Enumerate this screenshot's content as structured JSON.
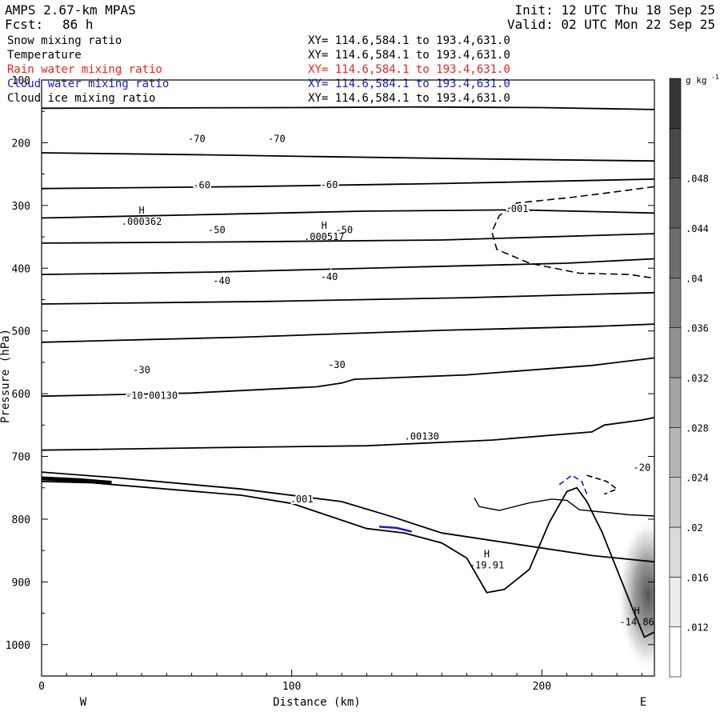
{
  "header": {
    "model": "AMPS 2.67-km MPAS",
    "init": "Init: 12 UTC Thu 18 Sep 25",
    "fcst_label": "Fcst:",
    "fcst_value": "86 h",
    "valid": "Valid: 02 UTC Mon 22 Sep 25"
  },
  "fields": [
    {
      "name": "Snow mixing ratio",
      "xy": "XY= 114.6,584.1 to 193.4,631.0",
      "color": "#000000"
    },
    {
      "name": "Temperature",
      "xy": "XY= 114.6,584.1 to 193.4,631.0",
      "color": "#000000"
    },
    {
      "name": "Rain water mixing ratio",
      "xy": "XY= 114.6,584.1 to 193.4,631.0",
      "color": "#e8261f"
    },
    {
      "name": "Cloud water mixing ratio",
      "xy": "XY= 114.6,584.1 to 193.4,631.0",
      "color": "#1a1acc"
    },
    {
      "name": "Cloud ice mixing ratio",
      "xy": "XY= 114.6,584.1 to 193.4,631.0",
      "color": "#000000"
    }
  ],
  "chart_data": {
    "type": "contour cross-section",
    "xlabel": "Distance (km)",
    "ylabel": "Pressure (hPa)",
    "xlim": [
      0,
      245
    ],
    "ylim": [
      1050,
      100
    ],
    "x_ticks": [
      0,
      100,
      200
    ],
    "y_ticks": [
      100,
      200,
      300,
      400,
      500,
      600,
      700,
      800,
      900,
      1000
    ],
    "left_end_label": "W",
    "right_end_label": "E",
    "colorbar": {
      "unit": "g kg",
      "unit_exp": "-1",
      "levels": [
        ".012",
        ".016",
        ".02",
        ".024",
        ".028",
        ".032",
        ".036",
        ".04",
        ".044",
        ".048"
      ]
    },
    "temperature_isotherms": [
      {
        "points": [
          [
            0,
            145
          ],
          [
            100,
            144
          ],
          [
            150,
            143
          ],
          [
            200,
            144
          ],
          [
            245,
            147
          ]
        ]
      },
      {
        "points": [
          [
            0,
            216
          ],
          [
            60,
            219
          ],
          [
            110,
            222
          ],
          [
            180,
            226
          ],
          [
            245,
            229
          ]
        ]
      },
      {
        "points": [
          [
            0,
            273
          ],
          [
            80,
            270
          ],
          [
            160,
            265
          ],
          [
            245,
            258
          ]
        ]
      },
      {
        "points": [
          [
            0,
            320
          ],
          [
            60,
            315
          ],
          [
            130,
            309
          ],
          [
            190,
            307
          ],
          [
            245,
            312
          ]
        ]
      },
      {
        "points": [
          [
            0,
            360
          ],
          [
            80,
            358
          ],
          [
            160,
            355
          ],
          [
            245,
            345
          ]
        ]
      },
      {
        "points": [
          [
            0,
            410
          ],
          [
            70,
            406
          ],
          [
            150,
            398
          ],
          [
            210,
            392
          ],
          [
            245,
            385
          ]
        ]
      },
      {
        "points": [
          [
            0,
            457
          ],
          [
            90,
            453
          ],
          [
            170,
            447
          ],
          [
            245,
            439
          ]
        ]
      },
      {
        "points": [
          [
            0,
            518
          ],
          [
            80,
            510
          ],
          [
            160,
            499
          ],
          [
            220,
            493
          ],
          [
            245,
            489
          ]
        ]
      },
      {
        "points": [
          [
            0,
            604
          ],
          [
            60,
            599
          ],
          [
            110,
            589
          ],
          [
            120,
            583
          ],
          [
            125,
            577
          ],
          [
            170,
            570
          ],
          [
            220,
            555
          ],
          [
            245,
            543
          ]
        ]
      },
      {
        "points": [
          [
            0,
            690
          ],
          [
            70,
            686
          ],
          [
            130,
            683
          ],
          [
            180,
            674
          ],
          [
            220,
            661
          ],
          [
            225,
            650
          ],
          [
            240,
            642
          ],
          [
            245,
            638
          ]
        ]
      },
      {
        "points": [
          [
            0,
            725
          ],
          [
            30,
            734
          ],
          [
            80,
            752
          ],
          [
            120,
            772
          ],
          [
            140,
            796
          ],
          [
            160,
            822
          ],
          [
            190,
            840
          ],
          [
            220,
            858
          ],
          [
            245,
            868
          ]
        ]
      }
    ],
    "temperature_labels": [
      {
        "text": "-70",
        "x": 62,
        "p": 194
      },
      {
        "text": "-70",
        "x": 94,
        "p": 194
      },
      {
        "text": "-60",
        "x": 64,
        "p": 268
      },
      {
        "text": "-60",
        "x": 115,
        "p": 267
      },
      {
        "text": "-50",
        "x": 70,
        "p": 339
      },
      {
        "text": "-50",
        "x": 121,
        "p": 339
      },
      {
        "text": "-40",
        "x": 72,
        "p": 420
      },
      {
        "text": "-40",
        "x": 115,
        "p": 414
      },
      {
        "text": "-30",
        "x": 40,
        "p": 562
      },
      {
        "text": "-30",
        "x": 118,
        "p": 554
      },
      {
        "text": "-20",
        "x": 240,
        "p": 718
      },
      {
        "text": "-10.00130",
        "x": 44,
        "p": 603
      },
      {
        "text": ".00130",
        "x": 152,
        "p": 668
      }
    ],
    "terrain_profile": [
      [
        0,
        740
      ],
      [
        20,
        742
      ],
      [
        50,
        752
      ],
      [
        80,
        762
      ],
      [
        100,
        775
      ],
      [
        115,
        795
      ],
      [
        130,
        815
      ],
      [
        145,
        822
      ],
      [
        160,
        838
      ],
      [
        170,
        862
      ],
      [
        178,
        917
      ],
      [
        185,
        912
      ],
      [
        195,
        880
      ],
      [
        203,
        805
      ],
      [
        210,
        756
      ],
      [
        214,
        750
      ],
      [
        218,
        772
      ],
      [
        224,
        820
      ],
      [
        230,
        880
      ],
      [
        236,
        940
      ],
      [
        241,
        988
      ],
      [
        245,
        980
      ]
    ],
    "snow_contour": [
      [
        173,
        766
      ],
      [
        175,
        780
      ],
      [
        183,
        786
      ],
      [
        195,
        774
      ],
      [
        204,
        768
      ],
      [
        210,
        770
      ],
      [
        215,
        785
      ],
      [
        235,
        793
      ],
      [
        245,
        795
      ]
    ],
    "cloud_ice_dashed": [
      [
        245,
        270
      ],
      [
        230,
        278
      ],
      [
        210,
        288
      ],
      [
        190,
        296
      ],
      [
        183,
        316
      ],
      [
        180,
        342
      ],
      [
        182,
        370
      ],
      [
        195,
        392
      ],
      [
        215,
        408
      ],
      [
        235,
        410
      ],
      [
        245,
        416
      ]
    ],
    "cloud_ice_dashed_2": [
      [
        218,
        730
      ],
      [
        226,
        740
      ],
      [
        230,
        752
      ],
      [
        225,
        760
      ]
    ],
    "cloud_water_dashed": [
      [
        207,
        745
      ],
      [
        212,
        730
      ],
      [
        216,
        740
      ],
      [
        218,
        760
      ]
    ],
    "rain_shading": {
      "x": 238,
      "p": 920,
      "max": 0.04
    },
    "extrema_labels": [
      {
        "marker": "H",
        "text": ".000362",
        "x": 40,
        "p": 318
      },
      {
        "marker": "H",
        "text": ".000517",
        "x": 113,
        "p": 342
      },
      {
        "marker": "H",
        "text": "-19.91",
        "x": 178,
        "p": 866
      },
      {
        "marker": "H",
        "text": "-14.86",
        "x": 238,
        "p": 956
      }
    ],
    "contour_value_labels": [
      {
        "text": ".001",
        "x": 190,
        "p": 305
      },
      {
        "text": ".001",
        "x": 104,
        "p": 768
      }
    ]
  }
}
